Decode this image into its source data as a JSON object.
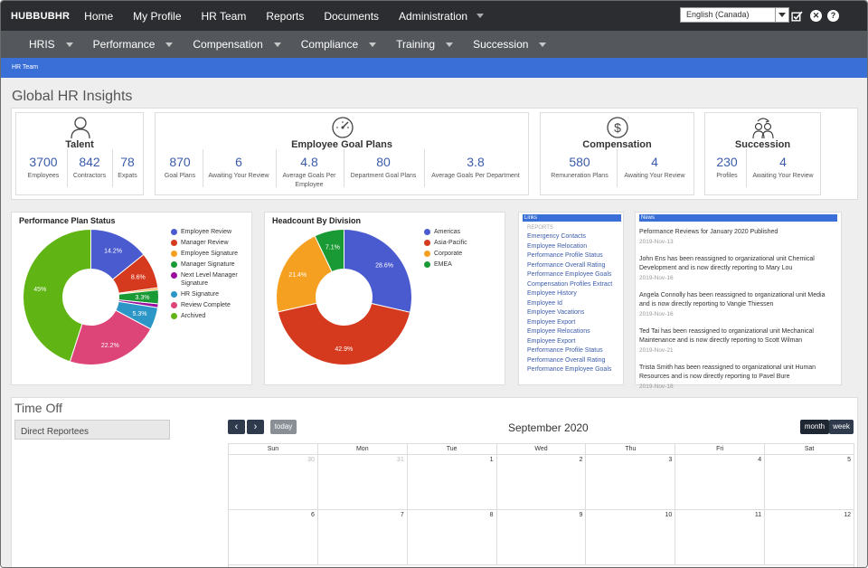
{
  "topnav": {
    "logo": "HUBBUBHR",
    "items": [
      "Home",
      "My Profile",
      "HR Team",
      "Reports",
      "Documents",
      "Administration"
    ],
    "language": "English (Canada)"
  },
  "subnav": {
    "items": [
      "HRIS",
      "Performance",
      "Compensation",
      "Compliance",
      "Training",
      "Succession"
    ]
  },
  "breadcrumb": "HR Team",
  "page_title": "Global HR Insights",
  "kpis": {
    "talent": {
      "heading": "Talent",
      "metrics": [
        {
          "value": "3700",
          "label": "Employees"
        },
        {
          "value": "842",
          "label": "Contractors"
        },
        {
          "value": "78",
          "label": "Expats"
        }
      ]
    },
    "goals": {
      "heading": "Employee Goal Plans",
      "metrics": [
        {
          "value": "870",
          "label": "Goal Plans"
        },
        {
          "value": "6",
          "label": "Awaiting Your Review"
        },
        {
          "value": "4.8",
          "label": "Average Goals Per",
          "label2": "Employee"
        },
        {
          "value": "80",
          "label": "Department Goal Plans"
        },
        {
          "value": "3.8",
          "label": "Average Goals Per Department"
        }
      ]
    },
    "compensation": {
      "heading": "Compensation",
      "metrics": [
        {
          "value": "580",
          "label": "Remuneration Plans"
        },
        {
          "value": "4",
          "label": "Awaiting Your Review"
        }
      ]
    },
    "succession": {
      "heading": "Succession",
      "metrics": [
        {
          "value": "230",
          "label": "Profiles"
        },
        {
          "value": "4",
          "label": "Awaiting Your Review"
        }
      ]
    }
  },
  "performance_chart": {
    "title": "Performance Plan Status",
    "legend": [
      {
        "name": "Employee Review",
        "color": "#4a5bd0"
      },
      {
        "name": "Manager Review",
        "color": "#d63a1e"
      },
      {
        "name": "Employee Signature",
        "color": "#f5a020"
      },
      {
        "name": "Manager Signature",
        "color": "#1a9a34"
      },
      {
        "name": "Next Level Manager",
        "name2": "Signature",
        "color": "#9a0f9e"
      },
      {
        "name": "HR Signature",
        "color": "#2c96c7"
      },
      {
        "name": "Review Complete",
        "color": "#dd4477"
      },
      {
        "name": "Archived",
        "color": "#60b414"
      }
    ]
  },
  "headcount_chart": {
    "title": "Headcount By Division",
    "legend": [
      {
        "name": "Americas",
        "color": "#4a5bd0"
      },
      {
        "name": "Asia-Pacific",
        "color": "#d63a1e"
      },
      {
        "name": "Corporate",
        "color": "#f5a020"
      },
      {
        "name": "EMEA",
        "color": "#1a9a34"
      }
    ]
  },
  "chart_data": [
    {
      "type": "pie",
      "title": "Performance Plan Status",
      "categories": [
        "Employee Review",
        "Manager Review",
        "Employee Signature",
        "Manager Signature",
        "Next Level Manager Signature",
        "HR Signature",
        "Review Complete",
        "Archived"
      ],
      "values": [
        14.2,
        8.6,
        0.5,
        3.3,
        0.9,
        5.3,
        22.2,
        45
      ],
      "labels": [
        "14.2%",
        "8.6%",
        "",
        "3.3%",
        "",
        "5.3%",
        "22.2%",
        "45%"
      ],
      "colors": [
        "#4a5bd0",
        "#d63a1e",
        "#f5a020",
        "#1a9a34",
        "#9a0f9e",
        "#2c96c7",
        "#dd4477",
        "#60b414"
      ]
    },
    {
      "type": "pie",
      "title": "Headcount By Division",
      "categories": [
        "Americas",
        "Asia-Pacific",
        "Corporate",
        "EMEA"
      ],
      "values": [
        28.6,
        42.9,
        21.4,
        7.1
      ],
      "labels": [
        "28.6%",
        "42.9%",
        "21.4%",
        "7.1%"
      ],
      "colors": [
        "#4a5bd0",
        "#d63a1e",
        "#f5a020",
        "#1a9a34"
      ]
    }
  ],
  "links": {
    "title": "Links",
    "items_top": [
      "Emergency Contacts",
      "Employee Relocation",
      "Performance Profile Status",
      "Performance Overall Rating",
      "Performance Employee Goals",
      "Compensation Profiles Extract"
    ],
    "section_reports": "REPORTS",
    "items": [
      "Employee History",
      "Employee Id",
      "Employee Vacations",
      "Employee Export",
      "Employee Relocations",
      "Employee Export",
      "Performance Profile Status",
      "Performance Overall Rating",
      "Performance Employee Goals"
    ]
  },
  "news": {
    "title": "News",
    "items": [
      {
        "text": "Peformance Reviews for January 2020 Published",
        "date": "2019-Nov-13"
      },
      {
        "text": "John Ens has been reassigned to organizational unit Chemical Development and is now directly reporting to Mary Lou",
        "date": "2019-Nov-16"
      },
      {
        "text": "Angela Connolly has been reassigned to organizational unit Media and is now directly reporting to Vangie Thiessen",
        "date": "2019-Nov-16"
      },
      {
        "text": "Ted Tai has been reassigned to organizational unit Mechanical Maintenance and is now directly reporting to Scott Wilman",
        "date": "2019-Nov-21"
      },
      {
        "text": "Trista Smith has been reassigned to organizational unit Human Resources and is now directly reporting to Pavel Bure",
        "date": "2019-Nov-18"
      }
    ]
  },
  "timeoff": {
    "title": "Time Off",
    "direct_reportees": "Direct Reportees",
    "prev": "‹",
    "next": "›",
    "today": "today",
    "month_title": "September 2020",
    "view_month": "month",
    "view_week": "week",
    "weekdays": [
      "Sun",
      "Mon",
      "Tue",
      "Wed",
      "Thu",
      "Fri",
      "Sat"
    ],
    "rows": [
      [
        {
          "d": "30",
          "o": true
        },
        {
          "d": "31",
          "o": true
        },
        {
          "d": "1"
        },
        {
          "d": "2"
        },
        {
          "d": "3"
        },
        {
          "d": "4"
        },
        {
          "d": "5"
        }
      ],
      [
        {
          "d": "6"
        },
        {
          "d": "7"
        },
        {
          "d": "8"
        },
        {
          "d": "9"
        },
        {
          "d": "10"
        },
        {
          "d": "11"
        },
        {
          "d": "12"
        }
      ]
    ]
  }
}
